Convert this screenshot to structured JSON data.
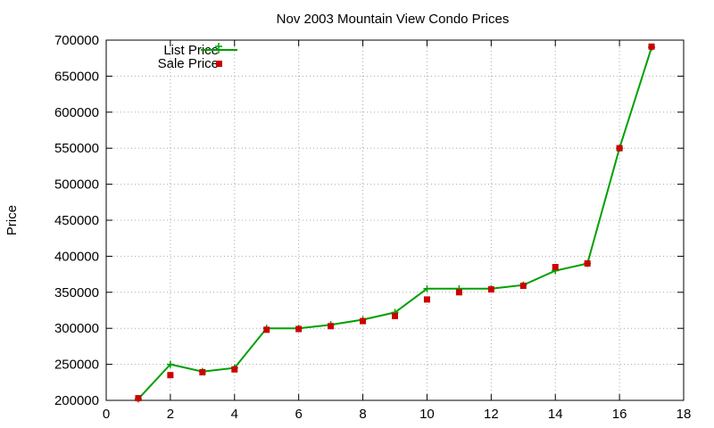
{
  "chart_data": {
    "type": "line",
    "title": "Nov 2003 Mountain View Condo Prices",
    "xlabel": "",
    "ylabel": "Price",
    "xlim": [
      0,
      18
    ],
    "ylim": [
      200000,
      700000
    ],
    "x_ticks": [
      0,
      2,
      4,
      6,
      8,
      10,
      12,
      14,
      16,
      18
    ],
    "y_ticks": [
      200000,
      250000,
      300000,
      350000,
      400000,
      450000,
      500000,
      550000,
      600000,
      650000,
      700000
    ],
    "grid": true,
    "legend_position": "top-left",
    "x": [
      1,
      2,
      3,
      4,
      5,
      6,
      7,
      8,
      9,
      10,
      11,
      12,
      13,
      14,
      15,
      16,
      17
    ],
    "series": [
      {
        "name": "List Price",
        "style": "line-with-plus-markers",
        "color": "#00a000",
        "values": [
          202000,
          250000,
          240000,
          245000,
          300000,
          300000,
          305000,
          312000,
          322000,
          355000,
          355000,
          355000,
          360000,
          380000,
          390000,
          550000,
          690000
        ]
      },
      {
        "name": "Sale Price",
        "style": "square-points",
        "color": "#cc0000",
        "values": [
          203000,
          235000,
          239000,
          243000,
          298000,
          299000,
          303000,
          310000,
          317000,
          340000,
          350000,
          354000,
          359000,
          385000,
          390000,
          550000,
          691000
        ]
      }
    ]
  }
}
